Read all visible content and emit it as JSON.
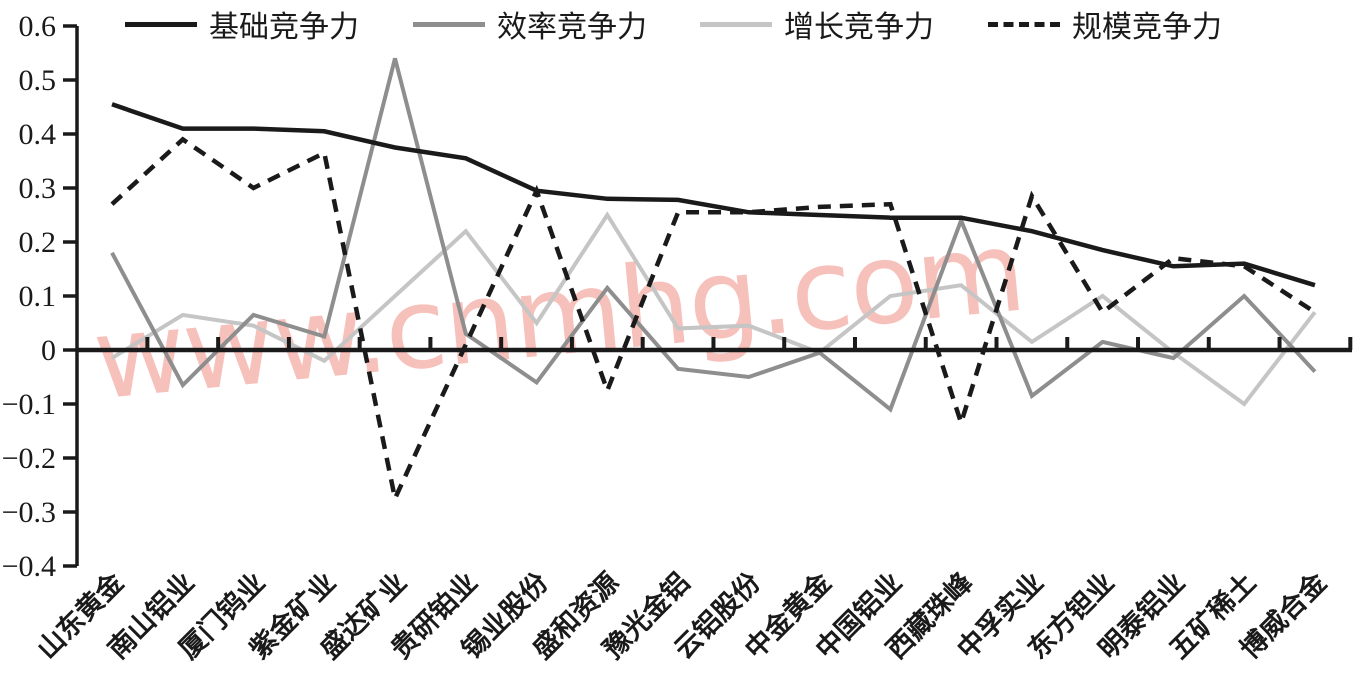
{
  "watermark": {
    "text": "www.cnmhg.com",
    "color": "rgba(242,152,141,0.60)"
  },
  "chart_data": {
    "type": "line",
    "title": "",
    "xlabel": "",
    "ylabel": "",
    "grid": false,
    "legend_position": "top",
    "x_axis_at_zero": true,
    "ylim": [
      -0.4,
      0.6
    ],
    "yticks": [
      {
        "v": 0.6,
        "label": "0.6"
      },
      {
        "v": 0.5,
        "label": "0.5"
      },
      {
        "v": 0.4,
        "label": "0.4"
      },
      {
        "v": 0.3,
        "label": "0.3"
      },
      {
        "v": 0.2,
        "label": "0.2"
      },
      {
        "v": 0.1,
        "label": "0.1"
      },
      {
        "v": 0.0,
        "label": "0"
      },
      {
        "v": -0.1,
        "label": "−0.1"
      },
      {
        "v": -0.2,
        "label": "−0.2"
      },
      {
        "v": -0.3,
        "label": "−0.3"
      },
      {
        "v": -0.4,
        "label": "−0.4"
      }
    ],
    "categories": [
      "山东黄金",
      "南山铝业",
      "厦门钨业",
      "紫金矿业",
      "盛达矿业",
      "贵研铂业",
      "锡业股份",
      "盛和资源",
      "豫光金铝",
      "云铝股份",
      "中金黄金",
      "中国铝业",
      "西藏珠峰",
      "中孚实业",
      "东方钽业",
      "明泰铝业",
      "五矿稀土",
      "博威合金"
    ],
    "series": [
      {
        "name": "基础竞争力",
        "style": "solid",
        "color": "#1a1a1a",
        "values": [
          0.455,
          0.41,
          0.41,
          0.405,
          0.375,
          0.355,
          0.295,
          0.28,
          0.278,
          0.255,
          0.25,
          0.245,
          0.245,
          0.22,
          0.185,
          0.155,
          0.16,
          0.12
        ]
      },
      {
        "name": "效率竞争力",
        "style": "solid",
        "color": "#8e8e8e",
        "values": [
          0.18,
          -0.065,
          0.065,
          0.025,
          0.54,
          0.03,
          -0.06,
          0.115,
          -0.035,
          -0.05,
          -0.005,
          -0.11,
          0.24,
          -0.085,
          0.015,
          -0.015,
          0.1,
          -0.04
        ]
      },
      {
        "name": "增长竞争力",
        "style": "solid",
        "color": "#c5c5c5",
        "values": [
          -0.015,
          0.065,
          0.045,
          -0.02,
          0.1,
          0.22,
          0.05,
          0.25,
          0.04,
          0.045,
          -0.005,
          0.1,
          0.12,
          0.015,
          0.1,
          -0.005,
          -0.1,
          0.07
        ]
      },
      {
        "name": "规模竞争力",
        "style": "dashed",
        "color": "#1a1a1a",
        "values": [
          0.27,
          0.39,
          0.3,
          0.365,
          -0.275,
          0.01,
          0.295,
          -0.075,
          0.255,
          0.255,
          0.265,
          0.27,
          -0.135,
          0.285,
          0.07,
          0.17,
          0.155,
          0.07
        ]
      }
    ]
  }
}
